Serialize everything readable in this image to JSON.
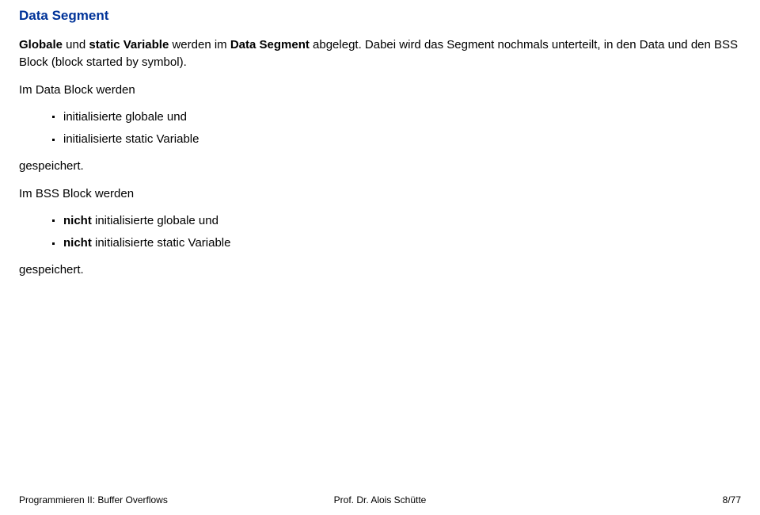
{
  "title": "Data Segment",
  "lead_parts": {
    "p1": "Globale",
    "p2": " und ",
    "p3": "static Variable",
    "p4": " werden im ",
    "p5": "Data Segment",
    "p6": " abgelegt. Dabei wird das Segment nochmals unterteilt, in den Data und den BSS Block (block started by symbol)."
  },
  "para1": "Im Data Block werden",
  "list1": {
    "item1": "initialisierte globale und",
    "item2": "initialisierte static Variable"
  },
  "para2": "gespeichert.",
  "para3": "Im BSS Block werden",
  "list2": {
    "item1_prefix": "nicht",
    "item1_rest": " initialisierte globale und",
    "item2_prefix": "nicht",
    "item2_rest": " initialisierte static Variable"
  },
  "para4": "gespeichert.",
  "footer": {
    "left": "Programmieren II: Buffer Overflows",
    "center": "Prof. Dr. Alois Schütte",
    "right": "8/77"
  }
}
